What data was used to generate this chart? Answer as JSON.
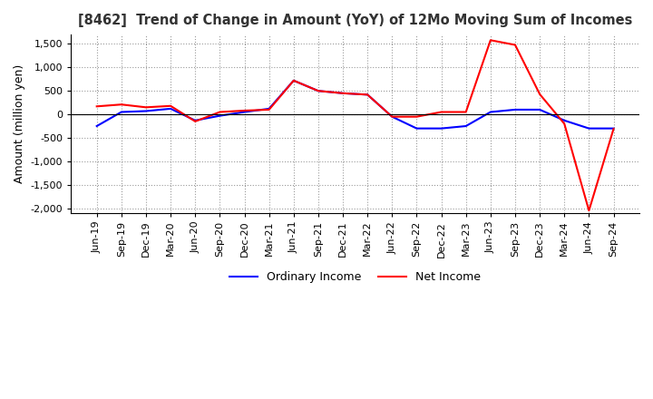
{
  "title": "[8462]  Trend of Change in Amount (YoY) of 12Mo Moving Sum of Incomes",
  "ylabel": "Amount (million yen)",
  "ylim": [
    -2100,
    1700
  ],
  "yticks": [
    -2000,
    -1500,
    -1000,
    -500,
    0,
    500,
    1000,
    1500
  ],
  "legend_labels": [
    "Ordinary Income",
    "Net Income"
  ],
  "line_colors": [
    "blue",
    "red"
  ],
  "x_labels": [
    "Jun-19",
    "Sep-19",
    "Dec-19",
    "Mar-20",
    "Jun-20",
    "Sep-20",
    "Dec-20",
    "Mar-21",
    "Jun-21",
    "Sep-21",
    "Dec-21",
    "Mar-22",
    "Jun-22",
    "Sep-22",
    "Dec-22",
    "Mar-23",
    "Jun-23",
    "Sep-23",
    "Dec-23",
    "Mar-24",
    "Jun-24",
    "Sep-24"
  ],
  "ordinary_income": [
    -250,
    50,
    70,
    120,
    -130,
    -30,
    50,
    120,
    720,
    500,
    450,
    420,
    -50,
    -300,
    -300,
    -250,
    50,
    100,
    100,
    -130,
    -300,
    -300
  ],
  "net_income": [
    170,
    210,
    150,
    180,
    -150,
    50,
    80,
    100,
    720,
    500,
    450,
    420,
    -50,
    -50,
    50,
    50,
    1580,
    1480,
    430,
    -200,
    -2050,
    -310
  ]
}
